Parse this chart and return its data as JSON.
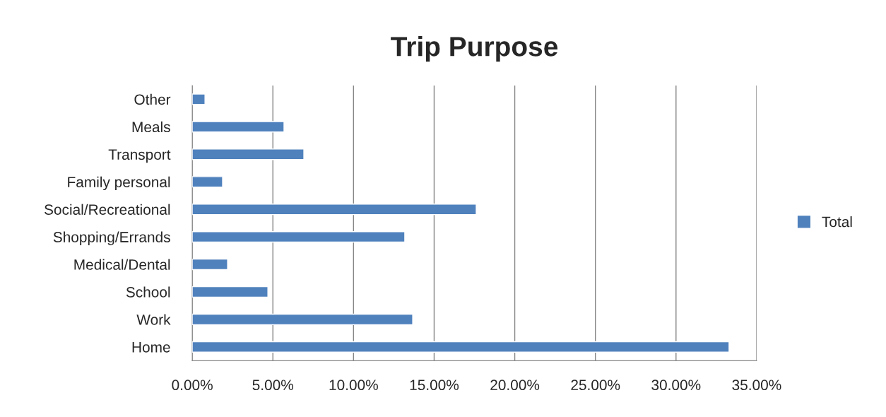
{
  "chart_data": {
    "type": "bar",
    "orientation": "horizontal",
    "title": "Trip Purpose",
    "categories": [
      "Other",
      "Meals",
      "Transport",
      "Family personal",
      "Social/Recreational",
      "Shopping/Errands",
      "Medical/Dental",
      "School",
      "Work",
      "Home"
    ],
    "series": [
      {
        "name": "Total",
        "color": "#4f81bd",
        "values": [
          0.79,
          5.69,
          6.92,
          1.88,
          17.61,
          13.18,
          2.19,
          4.69,
          13.67,
          33.29
        ]
      }
    ],
    "xlim": [
      0,
      35
    ],
    "xticks": [
      {
        "value": 0,
        "label": "0.00%"
      },
      {
        "value": 5,
        "label": "5.00%"
      },
      {
        "value": 10,
        "label": "10.00%"
      },
      {
        "value": 15,
        "label": "15.00%"
      },
      {
        "value": 20,
        "label": "20.00%"
      },
      {
        "value": 25,
        "label": "25.00%"
      },
      {
        "value": 30,
        "label": "30.00%"
      },
      {
        "value": 35,
        "label": "35.00%"
      }
    ],
    "grid": "x",
    "legend": "right"
  }
}
